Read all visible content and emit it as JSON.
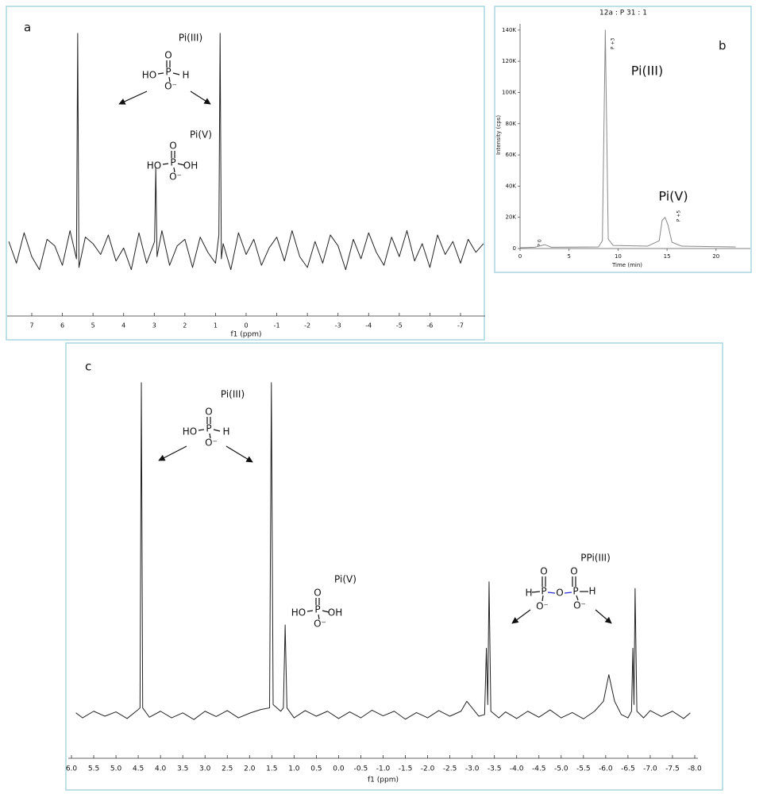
{
  "chart_data": [
    {
      "type": "line",
      "panel_label": "a",
      "color": "#222222",
      "xlabel": "f1 (ppm)",
      "annotations": [
        "Pi(III)",
        "Pi(V)"
      ],
      "structures": [
        [
          "O",
          "P",
          "HO",
          "H",
          "O⁻"
        ],
        [
          "O",
          "P",
          "HO",
          "OH",
          "O⁻"
        ]
      ],
      "x": [
        7.75,
        7.5,
        7.25,
        7,
        6.75,
        6.5,
        6.25,
        6,
        5.75,
        5.54,
        5.5,
        5.46,
        5.25,
        5,
        4.75,
        4.5,
        4.25,
        4,
        3.75,
        3.5,
        3.25,
        2.99,
        2.95,
        2.91,
        2.75,
        2.5,
        2.25,
        2,
        1.75,
        1.5,
        1.25,
        1,
        0.89,
        0.85,
        0.81,
        0.75,
        0.5,
        0.25,
        0,
        -0.25,
        -0.5,
        -0.75,
        -1,
        -1.25,
        -1.5,
        -1.75,
        -2,
        -2.25,
        -2.5,
        -2.75,
        -3,
        -3.25,
        -3.5,
        -3.75,
        -4,
        -4.25,
        -4.5,
        -4.75,
        -5,
        -5.25,
        -5.5,
        -5.75,
        -6,
        -6.25,
        -6.5,
        -6.75,
        -7,
        -7.25,
        -7.5,
        -7.75
      ],
      "values": [
        4,
        -6,
        8,
        -3,
        -9,
        5,
        2,
        -7,
        9,
        -4,
        100,
        -8,
        6,
        3,
        -2,
        7,
        -5,
        1,
        -9,
        8,
        -6,
        4,
        38,
        -3,
        9,
        -7,
        2,
        5,
        -8,
        6,
        -1,
        -6,
        7,
        100,
        -4,
        3,
        -9,
        8,
        -2,
        5,
        -7,
        1,
        6,
        -5,
        9,
        -3,
        -8,
        4,
        -6,
        7,
        2,
        -9,
        5,
        -4,
        8,
        -1,
        -7,
        6,
        -3,
        9,
        -5,
        3,
        -8,
        7,
        -2,
        4,
        -6,
        5,
        -1,
        3
      ],
      "xlim": [
        7.7,
        -7.7
      ],
      "xticks": [
        7,
        6,
        5,
        4,
        3,
        2,
        1,
        0,
        -1,
        -2,
        -3,
        -4,
        -5,
        -6,
        -7
      ],
      "ylim": [
        -15,
        100
      ]
    },
    {
      "type": "line",
      "panel_label": "b",
      "color": "#888888",
      "title": "12a : P 31 : 1",
      "xlabel": "Time (min)",
      "ylabel": "Intensity (cps)",
      "annotations": [
        "Pi(III)",
        "Pi(V)"
      ],
      "peak_labels": [
        "P 0",
        "P +3",
        "P +5"
      ],
      "x": [
        0,
        1.5,
        2.5,
        3.2,
        8,
        8.4,
        8.7,
        9,
        9.5,
        13,
        14.2,
        14.5,
        14.8,
        15.1,
        15.5,
        16.5,
        22
      ],
      "values": [
        500,
        800,
        2500,
        800,
        1000,
        5000,
        140000,
        6000,
        2000,
        1500,
        5000,
        18000,
        20000,
        15000,
        4000,
        1500,
        1000
      ],
      "xlim": [
        0,
        23.5
      ],
      "xticks": [
        0,
        5,
        10,
        15,
        20
      ],
      "ylim": [
        0,
        144000
      ],
      "yticks": [
        0,
        {
          "value": 20000,
          "label": "20K"
        },
        {
          "value": 40000,
          "label": "40K"
        },
        {
          "value": 60000,
          "label": "60K"
        },
        {
          "value": 80000,
          "label": "80K"
        },
        {
          "value": 100000,
          "label": "100K"
        },
        {
          "value": 120000,
          "label": "120K"
        },
        {
          "value": 140000,
          "label": "140K"
        }
      ]
    },
    {
      "type": "line",
      "panel_label": "c",
      "color": "#222222",
      "xlabel": "f1 (ppm)",
      "annotations": [
        "Pi(III)",
        "Pi(V)",
        "PPi(III)"
      ],
      "structures": [
        [
          "O",
          "P",
          "HO",
          "H",
          "O⁻"
        ],
        [
          "O",
          "P",
          "HO",
          "OH",
          "O⁻"
        ],
        [
          "O",
          "H",
          "P",
          "O",
          "P",
          "O",
          "H",
          "O⁻",
          "O⁻"
        ]
      ],
      "x": [
        5.9,
        5.75,
        5.5,
        5.25,
        5,
        4.75,
        4.5,
        4.46,
        4.43,
        4.4,
        4.25,
        4,
        3.75,
        3.5,
        3.25,
        3,
        2.75,
        2.5,
        2.25,
        2,
        1.75,
        1.55,
        1.51,
        1.47,
        1.3,
        1.24,
        1.2,
        1.16,
        1,
        0.75,
        0.5,
        0.25,
        0,
        -0.25,
        -0.5,
        -0.75,
        -1,
        -1.25,
        -1.5,
        -1.75,
        -2,
        -2.25,
        -2.5,
        -2.75,
        -2.88,
        -3,
        -3.15,
        -3.28,
        -3.32,
        -3.35,
        -3.38,
        -3.42,
        -3.6,
        -3.75,
        -4,
        -4.25,
        -4.5,
        -4.75,
        -5,
        -5.25,
        -5.5,
        -5.75,
        -5.95,
        -6.07,
        -6.2,
        -6.35,
        -6.5,
        -6.58,
        -6.61,
        -6.635,
        -6.66,
        -6.7,
        -6.85,
        -7,
        -7.25,
        -7.5,
        -7.75,
        -7.9
      ],
      "values": [
        0.5,
        -1,
        1,
        -0.5,
        0.8,
        -1.2,
        1.5,
        2,
        100,
        2,
        -0.8,
        1,
        -1,
        0.5,
        -1.5,
        1,
        -0.6,
        1.2,
        -1,
        0.4,
        1.5,
        2,
        100,
        3,
        1,
        2,
        27,
        2,
        -1,
        1.2,
        -0.5,
        1,
        -1.2,
        0.8,
        -1,
        1.3,
        -0.4,
        1,
        -1.4,
        0.6,
        -1,
        1.2,
        -0.5,
        1,
        4,
        2,
        -0.5,
        0,
        20,
        3,
        40,
        1,
        -1,
        0.8,
        -1.2,
        1,
        -0.8,
        1.4,
        -1,
        0.6,
        -1.3,
        1,
        4,
        12,
        4,
        0,
        -1,
        1,
        20,
        3,
        38,
        1,
        -1,
        1.2,
        -0.6,
        1,
        -1.2,
        0.5
      ],
      "xlim": [
        6,
        -8
      ],
      "xticks": [
        {
          "value": 6,
          "label": "6.0"
        },
        5.5,
        {
          "value": 5,
          "label": "5.0"
        },
        4.5,
        {
          "value": 4,
          "label": "4.0"
        },
        3.5,
        {
          "value": 3,
          "label": "3.0"
        },
        2.5,
        {
          "value": 2,
          "label": "2.0"
        },
        1.5,
        {
          "value": 1,
          "label": "1.0"
        },
        0.5,
        {
          "value": 0,
          "label": "0.0"
        },
        -0.5,
        {
          "value": -1,
          "label": "-1.0"
        },
        -1.5,
        {
          "value": -2,
          "label": "-2.0"
        },
        -2.5,
        {
          "value": -3,
          "label": "-3.0"
        },
        -3.5,
        {
          "value": -4,
          "label": "-4.0"
        },
        -4.5,
        {
          "value": -5,
          "label": "-5.0"
        },
        -5.5,
        {
          "value": -6,
          "label": "-6.0"
        },
        -6.5,
        {
          "value": -7,
          "label": "-7.0"
        },
        -7.5,
        {
          "value": -8,
          "label": "-8.0"
        }
      ],
      "ylim": [
        -6,
        100
      ]
    }
  ]
}
